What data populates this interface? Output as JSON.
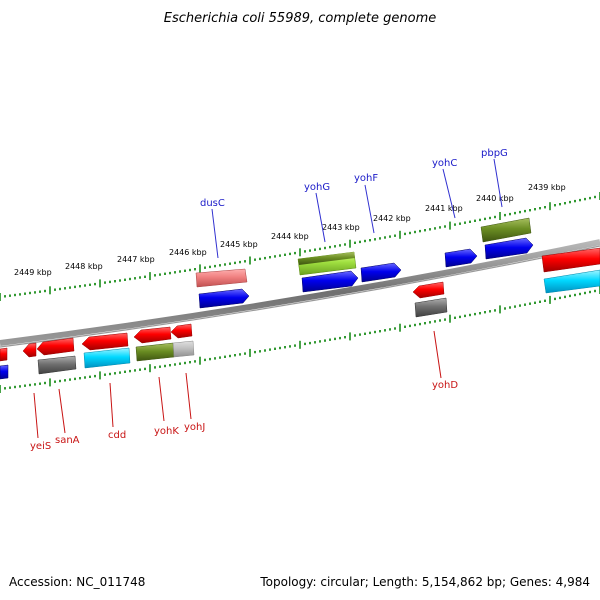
{
  "title": "Escherichia coli 55989, complete genome",
  "footer": {
    "accession": "Accession: NC_011748",
    "summary": "Topology: circular; Length: 5,154,862 bp; Genes: 4,984"
  },
  "ticks": [
    {
      "label": "2449 kbp"
    },
    {
      "label": "2448 kbp"
    },
    {
      "label": "2447 kbp"
    },
    {
      "label": "2446 kbp"
    },
    {
      "label": "2445 kbp"
    },
    {
      "label": "2444 kbp"
    },
    {
      "label": "2443 kbp"
    },
    {
      "label": "2442 kbp"
    },
    {
      "label": "2441 kbp"
    },
    {
      "label": "2440 kbp"
    },
    {
      "label": "2439 kbp"
    }
  ],
  "genes_top": [
    {
      "label": "dusC"
    },
    {
      "label": "yohG"
    },
    {
      "label": "yohF"
    },
    {
      "label": "yohC"
    },
    {
      "label": "pbpG"
    }
  ],
  "genes_bottom": [
    {
      "label": "yeiS"
    },
    {
      "label": "sanA"
    },
    {
      "label": "cdd"
    },
    {
      "label": "yohK"
    },
    {
      "label": "yohJ"
    },
    {
      "label": "yohD"
    }
  ],
  "colors": {
    "forward_cds": "#ff0000",
    "reverse_cds": "#ff0000",
    "blue_feature": "#0000ff",
    "cyan_feature": "#00d8ff",
    "olive_feature": "#6b8e23",
    "grey_feature": "#707070",
    "pink_feature": "#f08080",
    "lightgreen_feature": "#a0e040",
    "backbone": "#7a7a7a",
    "tick": "#1a8c1a",
    "label_top": "#1a1ac8",
    "label_bottom": "#c81414"
  }
}
